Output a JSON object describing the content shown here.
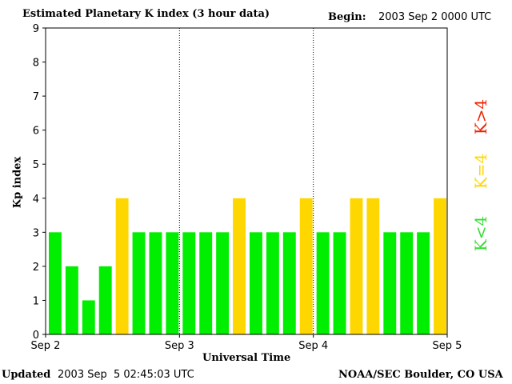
{
  "header": {
    "title": "Estimated Planetary K index (3 hour data)",
    "begin_label": "Begin:",
    "begin_value": "2003 Sep 2 0000 UTC"
  },
  "footer": {
    "updated_label": "Updated",
    "updated_value": "2003 Sep  5 02:45:03 UTC",
    "credit": "NOAA/SEC Boulder, CO USA"
  },
  "legend": {
    "low": "K<4",
    "mid": "K=4",
    "high": "K>4"
  },
  "colors": {
    "low": "#00ee00",
    "mid": "#ffd700",
    "high": "#ee2200"
  },
  "chart_data": {
    "type": "bar",
    "title": "Estimated Planetary K index (3 hour data)",
    "xlabel": "Universal Time",
    "ylabel": "Kp index",
    "ylim": [
      0,
      9
    ],
    "yticks": [
      0,
      1,
      2,
      3,
      4,
      5,
      6,
      7,
      8,
      9
    ],
    "xticks": [
      "Sep 2",
      "Sep 3",
      "Sep 4",
      "Sep 5"
    ],
    "grid": "vertical dotted day separators",
    "values": [
      3,
      2,
      1,
      2,
      4,
      3,
      3,
      3,
      3,
      3,
      3,
      4,
      3,
      3,
      3,
      4,
      3,
      3,
      4,
      4,
      3,
      3,
      3,
      4
    ]
  }
}
